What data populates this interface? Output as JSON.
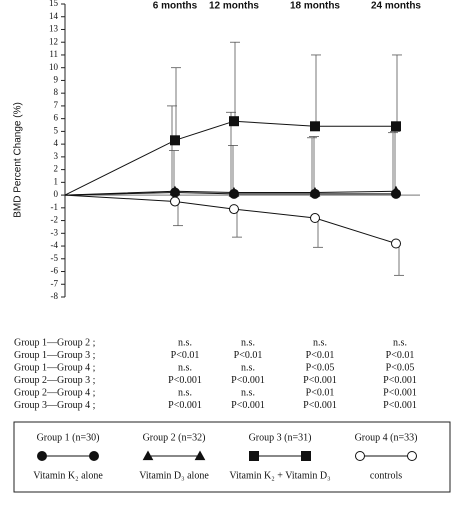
{
  "chart_data": {
    "type": "line",
    "ylabel": "BMD Percent Change (%)",
    "categories": [
      null,
      "6 months",
      "12 months",
      "18 months",
      "24 months"
    ],
    "ylim": [
      -8,
      15
    ],
    "yticks": [
      -8,
      -7,
      -6,
      -5,
      -4,
      -3,
      -2,
      -1,
      0,
      1,
      2,
      3,
      4,
      5,
      6,
      7,
      8,
      9,
      10,
      11,
      12,
      13,
      14,
      15
    ],
    "series": [
      {
        "name": "Group 1 (n=30)",
        "description": "Vitamin K₂ alone",
        "marker": "circle",
        "filled": true,
        "color": "#111",
        "error_direction": "up",
        "values": [
          0,
          0.2,
          0.1,
          0.1,
          0.1
        ],
        "errors": [
          null,
          6.8,
          6.4,
          4.4,
          4.8
        ]
      },
      {
        "name": "Group 2 (n=32)",
        "description": "Vitamin D₃ alone",
        "marker": "triangle",
        "filled": true,
        "color": "#111",
        "error_direction": "up",
        "values": [
          0,
          0.3,
          0.2,
          0.2,
          0.3
        ],
        "errors": [
          null,
          3.2,
          3.7,
          4.4,
          4.7
        ]
      },
      {
        "name": "Group 3 (n=31)",
        "description": "Vitamin K₂ + Vitamin D₃",
        "marker": "square",
        "filled": true,
        "color": "#111",
        "error_direction": "up",
        "values": [
          0,
          4.3,
          5.8,
          5.4,
          5.4
        ],
        "errors": [
          null,
          5.7,
          6.2,
          5.6,
          5.6
        ]
      },
      {
        "name": "Group 4 (n=33)",
        "description": "controls",
        "marker": "circle",
        "filled": false,
        "color": "#111",
        "error_direction": "down",
        "values": [
          0,
          -0.5,
          -1.1,
          -1.8,
          -3.8
        ],
        "errors": [
          null,
          1.9,
          2.2,
          2.3,
          2.5
        ]
      }
    ]
  },
  "table": {
    "rows": [
      [
        "Group 1—Group 2 ;",
        "n.s.",
        "n.s.",
        "n.s.",
        "n.s."
      ],
      [
        "Group 1—Group 3 ;",
        "P<0.01",
        "P<0.01",
        "P<0.01",
        "P<0.01"
      ],
      [
        "Group 1—Group 4 ;",
        "n.s.",
        "n.s.",
        "P<0.05",
        "P<0.05"
      ],
      [
        "Group 2—Group 3 ;",
        "P<0.001",
        "P<0.001",
        "P<0.001",
        "P<0.001"
      ],
      [
        "Group 2—Group 4 ;",
        "n.s.",
        "n.s.",
        "P<0.01",
        "P<0.001"
      ],
      [
        "Group 3—Group 4 ;",
        "P<0.001",
        "P<0.001",
        "P<0.001",
        "P<0.001"
      ]
    ]
  }
}
